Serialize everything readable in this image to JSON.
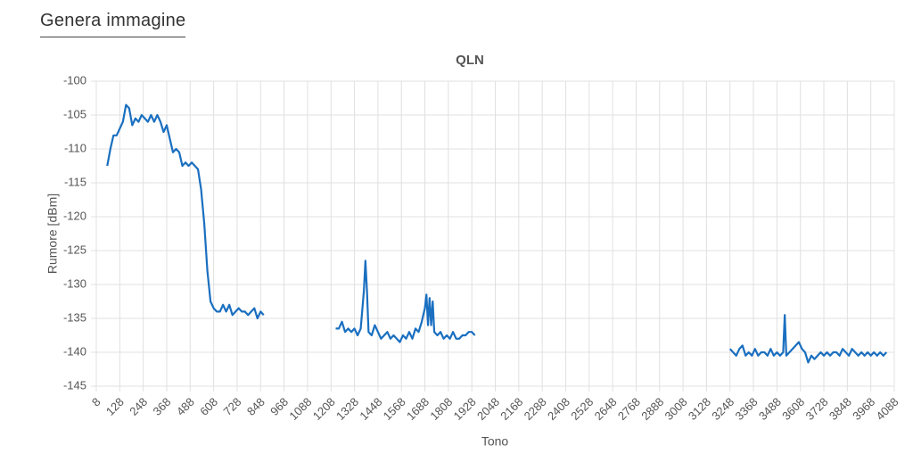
{
  "header": {
    "title": "Genera immagine"
  },
  "chart_data": {
    "type": "line",
    "title": "QLN",
    "x_label": "Tono",
    "y_label": "Rumore [dBm]",
    "xlim": [
      8,
      4088
    ],
    "ylim": [
      -145,
      -100
    ],
    "grid": true,
    "xticks": [
      8,
      128,
      248,
      368,
      488,
      608,
      728,
      848,
      968,
      1088,
      1208,
      1328,
      1448,
      1568,
      1688,
      1808,
      1928,
      2048,
      2168,
      2288,
      2408,
      2528,
      2648,
      2768,
      2888,
      3008,
      3128,
      3248,
      3368,
      3488,
      3608,
      3728,
      3848,
      3968,
      4088
    ],
    "yticks": [
      -145,
      -140,
      -135,
      -130,
      -125,
      -120,
      -115,
      -110,
      -105,
      -100
    ],
    "x": [
      64,
      80,
      96,
      112,
      128,
      144,
      160,
      176,
      192,
      208,
      224,
      240,
      256,
      272,
      288,
      304,
      320,
      336,
      352,
      368,
      384,
      400,
      416,
      432,
      448,
      464,
      480,
      496,
      512,
      528,
      544,
      560,
      576,
      592,
      608,
      624,
      640,
      656,
      672,
      688,
      704,
      720,
      736,
      752,
      768,
      784,
      800,
      816,
      832,
      848,
      864,
      1000,
      1232,
      1248,
      1264,
      1280,
      1296,
      1312,
      1328,
      1344,
      1360,
      1376,
      1384,
      1392,
      1400,
      1416,
      1432,
      1448,
      1464,
      1480,
      1496,
      1512,
      1528,
      1544,
      1560,
      1576,
      1592,
      1608,
      1624,
      1640,
      1656,
      1672,
      1688,
      1696,
      1704,
      1712,
      1720,
      1728,
      1736,
      1752,
      1768,
      1784,
      1800,
      1816,
      1832,
      1848,
      1864,
      1880,
      1896,
      1912,
      1928,
      1944,
      2600,
      3248,
      3264,
      3280,
      3296,
      3312,
      3328,
      3344,
      3360,
      3376,
      3392,
      3408,
      3424,
      3440,
      3456,
      3472,
      3488,
      3504,
      3520,
      3528,
      3536,
      3552,
      3568,
      3584,
      3600,
      3616,
      3632,
      3648,
      3664,
      3680,
      3696,
      3712,
      3728,
      3744,
      3760,
      3776,
      3792,
      3808,
      3824,
      3840,
      3856,
      3872,
      3888,
      3904,
      3920,
      3936,
      3952,
      3968,
      3984,
      4000,
      4016,
      4032,
      4048
    ],
    "series": [
      {
        "color": "#1a6fc0",
        "values": [
          -112.5,
          -110,
          -108,
          -108,
          -107,
          -106,
          -103.5,
          -104,
          -106.5,
          -105.5,
          -106,
          -105,
          -105.5,
          -106,
          -105,
          -106,
          -105,
          -106,
          -107.5,
          -106.5,
          -108.5,
          -110.5,
          -110,
          -110.5,
          -112.5,
          -112,
          -112.5,
          -112,
          -112.5,
          -113,
          -116,
          -121,
          -128,
          -132.5,
          -133.5,
          -134,
          -134,
          -133,
          -134,
          -133,
          -134.5,
          -134,
          -133.5,
          -134,
          -134,
          -134.5,
          -134,
          -133.5,
          -135,
          -134,
          -134.5,
          null,
          -136.5,
          -136.5,
          -135.5,
          -137,
          -136.5,
          -137,
          -136.5,
          -137.5,
          -136.5,
          -131,
          -126.5,
          -131,
          -137,
          -137.5,
          -136,
          -137,
          -138,
          -137.5,
          -137,
          -138,
          -137.5,
          -138,
          -138.5,
          -137.5,
          -138,
          -137,
          -138,
          -136.5,
          -137,
          -135.5,
          -133.5,
          -131.5,
          -136,
          -132,
          -136,
          -132.5,
          -137,
          -137.5,
          -137,
          -138,
          -137.5,
          -138,
          -137,
          -138,
          -138,
          -137.5,
          -137.5,
          -137,
          -137,
          -137.5,
          null,
          -139.5,
          -140,
          -140.5,
          -139.5,
          -139,
          -140.5,
          -140,
          -140.5,
          -139.5,
          -140.5,
          -140,
          -140,
          -140.5,
          -139.5,
          -140.5,
          -140,
          -140.5,
          -140,
          -134.5,
          -140.5,
          -140,
          -139.5,
          -139,
          -138.5,
          -139.5,
          -140,
          -141.5,
          -140.5,
          -141,
          -140.5,
          -140,
          -140.5,
          -140,
          -140.5,
          -140,
          -140,
          -140.5,
          -139.5,
          -140,
          -140.5,
          -139.5,
          -140,
          -140.5,
          -140,
          -140.5,
          -140,
          -140.5,
          -140,
          -140.5,
          -140,
          -140.5,
          -140
        ]
      }
    ]
  }
}
